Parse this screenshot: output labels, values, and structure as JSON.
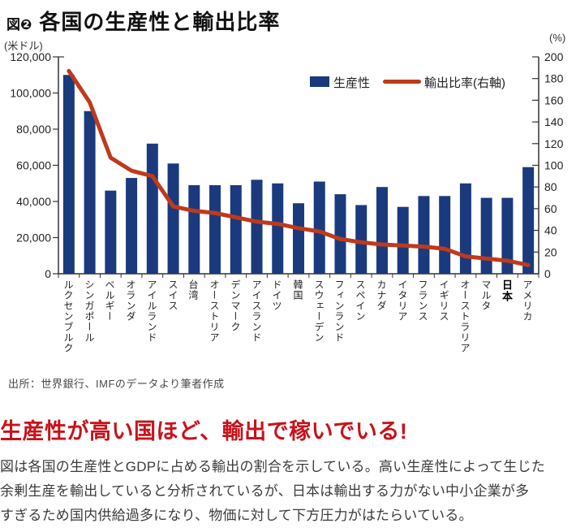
{
  "header": {
    "figure_badge": "図❷",
    "title": "各国の生産性と輸出比率"
  },
  "palette": {
    "bar_blue": "#1A3A7D",
    "line_red": "#BF3A1B",
    "headline_red": "#C9121A",
    "axis_gray": "#333333"
  },
  "chart_data": {
    "type": "bar",
    "title": "各国の生産性と輸出比率",
    "categories": [
      "ルクセンブルク",
      "シンガポール",
      "ベルギー",
      "オランダ",
      "アイルランド",
      "スイス",
      "台湾",
      "オーストリア",
      "デンマーク",
      "アイスランド",
      "ドイツ",
      "韓国",
      "スウェーデン",
      "フィンランド",
      "スペイン",
      "カナダ",
      "イタリア",
      "フランス",
      "イギリス",
      "オーストラリア",
      "マルタ",
      "日本",
      "アメリカ"
    ],
    "series": [
      {
        "name": "生産性",
        "type": "bar",
        "axis": "left",
        "values": [
          110000,
          90000,
          46000,
          53000,
          72000,
          61000,
          49000,
          49000,
          49000,
          52000,
          50000,
          39000,
          51000,
          44000,
          38000,
          48000,
          37000,
          43000,
          43000,
          50000,
          42000,
          42000,
          59000
        ]
      },
      {
        "name": "輸出比率(右軸)",
        "type": "line",
        "axis": "right",
        "values": [
          187,
          158,
          107,
          95,
          90,
          62,
          58,
          56,
          52,
          48,
          46,
          42,
          39,
          32,
          29,
          27,
          26,
          25,
          23,
          16,
          14,
          12,
          8
        ]
      }
    ],
    "left_axis": {
      "label": "(米ドル)",
      "min": 0,
      "max": 120000,
      "tick_step": 20000
    },
    "right_axis": {
      "label": "(%)",
      "min": 0,
      "max": 200,
      "tick_step": 20
    },
    "legend_position": "top-right-inside",
    "grid": false,
    "emphasized_category": "日本"
  },
  "legend": {
    "bar_label": "生産性",
    "line_label": "輸出比率(右軸)"
  },
  "source": "出所：世界銀行、IMFのデータより筆者作成",
  "headline": "生産性が高い国ほど、輸出で稼いでいる!",
  "body_text": "図は各国の生産性とGDPに占める輸出の割合を示している。高い生産性によって生じた\n余剰生産を輸出していると分析されているが、日本は輸出する力がない中小企業が多\nすぎるため国内供給過多になり、物価に対して下方圧力がはたらいている。"
}
